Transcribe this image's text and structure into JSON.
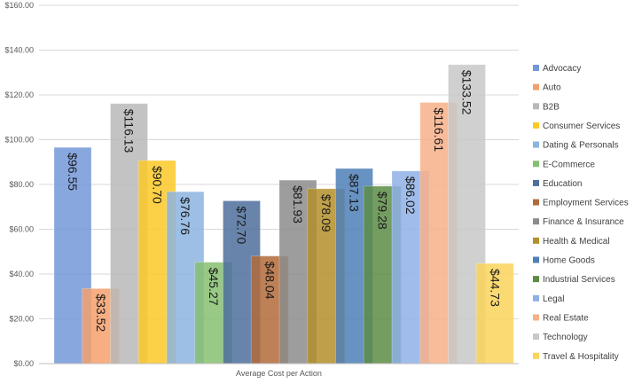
{
  "chart_data": {
    "type": "bar",
    "title": "",
    "xlabel": "Average Cost per Action",
    "ylabel": "",
    "ylim": [
      0,
      160
    ],
    "y_ticks": [
      "$0.00",
      "$20.00",
      "$40.00",
      "$60.00",
      "$80.00",
      "$100.00",
      "$120.00",
      "$140.00",
      "$160.00"
    ],
    "y_tick_values": [
      0,
      20,
      40,
      60,
      80,
      100,
      120,
      140,
      160
    ],
    "grid": true,
    "legend_position": "right",
    "categories": [
      "Average Cost per Action"
    ],
    "series": [
      {
        "name": "Advocacy",
        "values": [
          96.55
        ],
        "label": "$96.55",
        "color": "#7398d8"
      },
      {
        "name": "Auto",
        "values": [
          33.52
        ],
        "label": "$33.52",
        "color": "#f4a06c"
      },
      {
        "name": "B2B",
        "values": [
          116.13
        ],
        "label": "$116.13",
        "color": "#b8b8b8"
      },
      {
        "name": "Consumer Services",
        "values": [
          90.7
        ],
        "label": "$90.70",
        "color": "#fcc927"
      },
      {
        "name": "Dating & Personals",
        "values": [
          76.76
        ],
        "label": "$76.76",
        "color": "#8cb4e0"
      },
      {
        "name": "E-Commerce",
        "values": [
          45.27
        ],
        "label": "$45.27",
        "color": "#86c070"
      },
      {
        "name": "Education",
        "values": [
          72.7
        ],
        "label": "$72.70",
        "color": "#4e6f9c"
      },
      {
        "name": "Employment Services",
        "values": [
          48.04
        ],
        "label": "$48.04",
        "color": "#b26a3a"
      },
      {
        "name": "Finance & Insurance",
        "values": [
          81.93
        ],
        "label": "$81.93",
        "color": "#8c8c8c"
      },
      {
        "name": "Health & Medical",
        "values": [
          78.09
        ],
        "label": "$78.09",
        "color": "#b48f2a"
      },
      {
        "name": "Home Goods",
        "values": [
          87.13
        ],
        "label": "$87.13",
        "color": "#4e7fb6"
      },
      {
        "name": "Industrial Services",
        "values": [
          79.28
        ],
        "label": "$79.28",
        "color": "#5c8c45"
      },
      {
        "name": "Legal",
        "values": [
          86.02
        ],
        "label": "$86.02",
        "color": "#8fb0e6"
      },
      {
        "name": "Real Estate",
        "values": [
          116.61
        ],
        "label": "$116.61",
        "color": "#f7b088"
      },
      {
        "name": "Technology",
        "values": [
          133.52
        ],
        "label": "$133.52",
        "color": "#c8c8c8"
      },
      {
        "name": "Travel & Hospitality",
        "values": [
          44.73
        ],
        "label": "$44.73",
        "color": "#fcd35a"
      }
    ]
  }
}
